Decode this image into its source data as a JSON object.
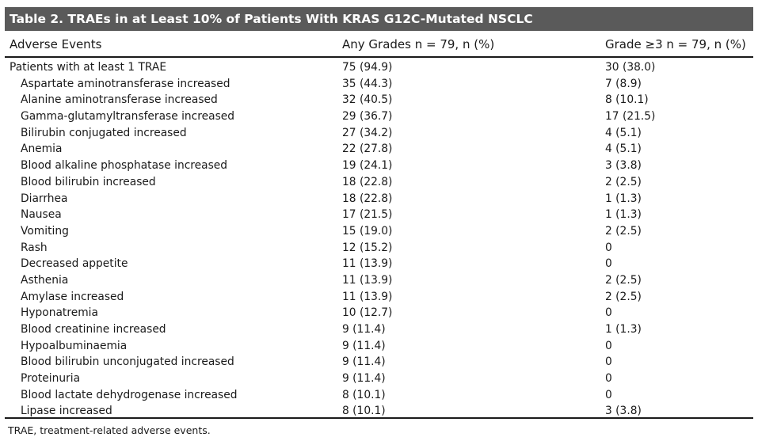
{
  "table": {
    "title": "Table 2. TRAEs in at Least 10% of Patients With KRAS G12C-Mutated NSCLC",
    "headers": {
      "col1": "Adverse Events",
      "col2": "Any Grades n = 79, n (%)",
      "col3": "Grade ≥3 n = 79, n (%)"
    },
    "rows": [
      {
        "event": "Patients with at least 1 TRAE",
        "any": "75 (94.9)",
        "g3": "30 (38.0)"
      },
      {
        "event": "Aspartate aminotransferase increased",
        "any": "35 (44.3)",
        "g3": "7 (8.9)"
      },
      {
        "event": "Alanine aminotransferase increased",
        "any": "32 (40.5)",
        "g3": "8 (10.1)"
      },
      {
        "event": "Gamma-glutamyltransferase increased",
        "any": "29 (36.7)",
        "g3": "17 (21.5)"
      },
      {
        "event": "Bilirubin conjugated increased",
        "any": "27 (34.2)",
        "g3": "4 (5.1)"
      },
      {
        "event": "Anemia",
        "any": "22 (27.8)",
        "g3": "4 (5.1)"
      },
      {
        "event": "Blood alkaline phosphatase increased",
        "any": "19 (24.1)",
        "g3": "3 (3.8)"
      },
      {
        "event": "Blood bilirubin increased",
        "any": "18 (22.8)",
        "g3": "2 (2.5)"
      },
      {
        "event": "Diarrhea",
        "any": "18 (22.8)",
        "g3": "1 (1.3)"
      },
      {
        "event": "Nausea",
        "any": "17 (21.5)",
        "g3": "1 (1.3)"
      },
      {
        "event": "Vomiting",
        "any": "15 (19.0)",
        "g3": "2 (2.5)"
      },
      {
        "event": "Rash",
        "any": "12 (15.2)",
        "g3": "0"
      },
      {
        "event": "Decreased appetite",
        "any": "11 (13.9)",
        "g3": "0"
      },
      {
        "event": "Asthenia",
        "any": "11 (13.9)",
        "g3": "2 (2.5)"
      },
      {
        "event": "Amylase increased",
        "any": "11 (13.9)",
        "g3": "2 (2.5)"
      },
      {
        "event": "Hyponatremia",
        "any": "10 (12.7)",
        "g3": "0"
      },
      {
        "event": "Blood creatinine increased",
        "any": "9 (11.4)",
        "g3": "1 (1.3)"
      },
      {
        "event": "Hypoalbuminaemia",
        "any": "9 (11.4)",
        "g3": "0"
      },
      {
        "event": "Blood bilirubin unconjugated increased",
        "any": "9 (11.4)",
        "g3": "0"
      },
      {
        "event": "Proteinuria",
        "any": "9 (11.4)",
        "g3": "0"
      },
      {
        "event": "Blood lactate dehydrogenase increased",
        "any": "8 (10.1)",
        "g3": "0"
      },
      {
        "event": "Lipase increased",
        "any": "8 (10.1)",
        "g3": "3 (3.8)"
      }
    ],
    "footnote": "TRAE, treatment-related adverse events."
  },
  "colors": {
    "title_bar": "#5a5a5a",
    "title_text": "#ffffff",
    "rule": "#1a1a1a"
  }
}
